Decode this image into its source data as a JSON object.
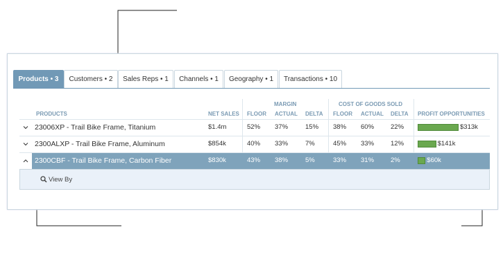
{
  "tabs": [
    "Products • 3",
    "Customers • 2",
    "Sales Reps • 1",
    "Channels • 1",
    "Geography • 1",
    "Transactions • 10"
  ],
  "table": {
    "group_headers": [
      "MARGIN",
      "COST OF GOODS SOLD"
    ],
    "columns": [
      "PRODUCTS",
      "NET SALES",
      "FLOOR",
      "ACTUAL",
      "DELTA",
      "FLOOR",
      "ACTUAL",
      "DELTA",
      "PROFIT OPPORTUNITIES"
    ],
    "rows": [
      {
        "product": "23006XP - Trail Bike Frame, Titanium",
        "cells": [
          "$1.4m",
          "52%",
          "37%",
          "15%",
          "38%",
          "60%",
          "22%"
        ],
        "profit": {
          "value": 313,
          "label": "$313k"
        }
      },
      {
        "product": "2300ALXP - Trail Bike Frame, Aluminum",
        "cells": [
          "$854k",
          "40%",
          "33%",
          "7%",
          "45%",
          "33%",
          "12%"
        ],
        "profit": {
          "value": 141,
          "label": "$141k"
        }
      },
      {
        "product": "2300CBF - Trail Bike Frame, Carbon Fiber",
        "cells": [
          "$830k",
          "43%",
          "38%",
          "5%",
          "33%",
          "31%",
          "2%"
        ],
        "profit": {
          "value": 60,
          "label": "$60k"
        }
      }
    ],
    "expanded_action": "View By"
  }
}
